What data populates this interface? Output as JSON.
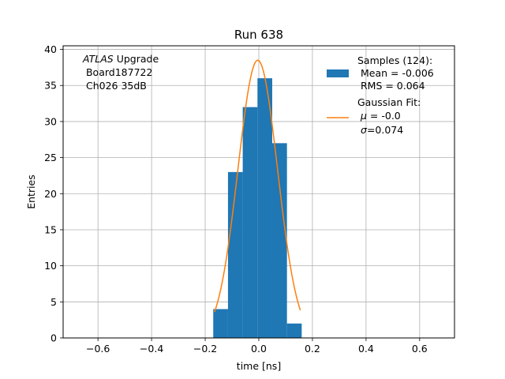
{
  "chart_data": {
    "type": "bar",
    "title": "Run 638",
    "xlabel": "time [ns]",
    "ylabel": "Entries",
    "xlim": [
      -0.73,
      0.73
    ],
    "ylim": [
      0,
      40.5
    ],
    "xticks": [
      -0.6,
      -0.4,
      -0.2,
      0.0,
      0.2,
      0.4,
      0.6
    ],
    "xtick_labels": [
      "−0.6",
      "−0.4",
      "−0.2",
      "0.0",
      "0.2",
      "0.4",
      "0.6"
    ],
    "yticks": [
      0,
      5,
      10,
      15,
      20,
      25,
      30,
      35,
      40
    ],
    "ytick_labels": [
      "0",
      "5",
      "10",
      "15",
      "20",
      "25",
      "30",
      "35",
      "40"
    ],
    "grid": true,
    "histogram": {
      "name": "Samples",
      "color": "#1f77b4",
      "bin_edges": [
        -0.17,
        -0.115,
        -0.06,
        -0.005,
        0.05,
        0.105,
        0.16
      ],
      "counts": [
        4,
        23,
        32,
        36,
        27,
        2
      ]
    },
    "fit": {
      "name": "Gaussian Fit",
      "color": "#ff7f0e",
      "mu": -0.004,
      "sigma": 0.074,
      "amplitude": 38.5,
      "x_range": [
        -0.165,
        0.155
      ]
    },
    "annotation": {
      "italic": "ATLAS",
      "line1_rest": " Upgrade",
      "line2": " Board187722",
      "line3": " Ch026 35dB"
    },
    "legend": {
      "position": "top-right",
      "samples_line1": "Samples (124):",
      "samples_line2": " Mean = -0.006",
      "samples_line3": " RMS = 0.064",
      "fit_line1": "Gaussian Fit:",
      "fit_mu_symbol": "μ",
      "fit_mu_value": " = -0.0",
      "fit_sigma_symbol": "σ",
      "fit_sigma_value": "=0.074"
    }
  }
}
